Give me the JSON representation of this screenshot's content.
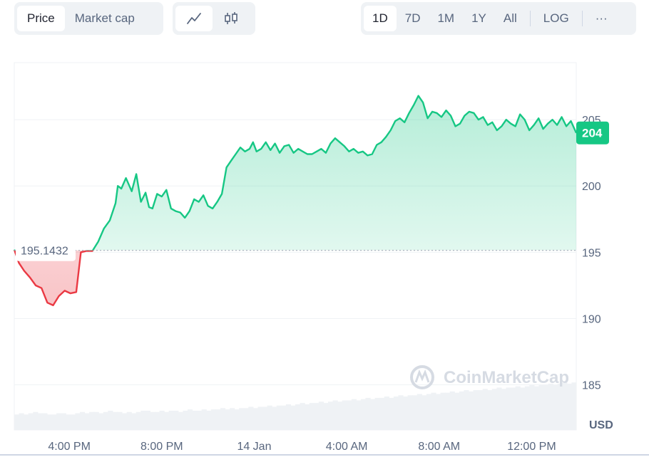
{
  "toolbar": {
    "metric_tabs": [
      {
        "label": "Price",
        "active": true
      },
      {
        "label": "Market cap",
        "active": false
      }
    ],
    "chart_type_icons": [
      "line-chart-icon",
      "candlestick-icon"
    ],
    "range_tabs": [
      {
        "label": "1D",
        "active": true
      },
      {
        "label": "7D",
        "active": false
      },
      {
        "label": "1M",
        "active": false
      },
      {
        "label": "1Y",
        "active": false
      },
      {
        "label": "All",
        "active": false
      }
    ],
    "log_label": "LOG",
    "more_label": "···"
  },
  "colors": {
    "up": "#16c784",
    "down": "#ea3943",
    "grid": "#eff2f5",
    "axis_text": "#58667e"
  },
  "chart_data": {
    "type": "area",
    "currency": "USD",
    "watermark": "CoinMarketCap",
    "x_ticks": [
      "4:00 PM",
      "8:00 PM",
      "14 Jan",
      "4:00 AM",
      "8:00 AM",
      "12:00 PM"
    ],
    "x_tick_hours": [
      16,
      20,
      24,
      28,
      32,
      36
    ],
    "x_range_hours": [
      13.62,
      37.93
    ],
    "y_ticks": [
      185,
      190,
      195,
      200,
      205
    ],
    "y_range": [
      181.6,
      200.0,
      209.3
    ],
    "y_view": [
      181.6,
      209.3
    ],
    "open_price": 195.1432,
    "open_price_label": "195.1432",
    "current_price": 204,
    "current_price_label": "204",
    "series": [
      {
        "x": [
          13.62,
          13.82,
          14.05,
          14.3,
          14.55,
          14.8,
          15.05,
          15.3,
          15.55,
          15.8,
          16.05,
          16.3,
          16.5,
          16.75,
          17.0,
          17.25,
          17.5,
          17.75,
          18.0,
          18.1,
          18.25,
          18.45,
          18.7,
          18.9,
          19.1,
          19.3,
          19.45,
          19.6,
          19.8,
          20.0,
          20.2,
          20.4,
          20.6,
          20.8,
          21.0,
          21.2,
          21.4,
          21.6,
          21.8,
          22.0,
          22.2,
          22.4,
          22.6,
          22.8,
          23.0,
          23.2,
          23.4,
          23.6,
          23.8,
          23.95,
          24.1,
          24.3,
          24.5,
          24.7,
          24.9,
          25.1,
          25.3,
          25.5,
          25.7,
          25.9,
          26.1,
          26.3,
          26.5,
          26.7,
          26.9,
          27.1,
          27.3,
          27.5,
          27.7,
          27.9,
          28.1,
          28.3,
          28.5,
          28.7,
          28.9,
          29.1,
          29.3,
          29.5,
          29.7,
          29.9,
          30.1,
          30.3,
          30.5,
          30.7,
          30.9,
          31.1,
          31.3,
          31.5,
          31.7,
          31.9,
          32.1,
          32.3,
          32.5,
          32.7,
          32.9,
          33.1,
          33.3,
          33.5,
          33.7,
          33.9,
          34.1,
          34.3,
          34.5,
          34.7,
          34.9,
          35.1,
          35.3,
          35.5,
          35.7,
          35.9,
          36.1,
          36.3,
          36.5,
          36.7,
          36.9,
          37.1,
          37.3,
          37.5,
          37.7,
          37.93
        ],
        "y": [
          195.2,
          194.2,
          193.6,
          193.1,
          192.5,
          192.3,
          191.2,
          191.0,
          191.7,
          192.1,
          191.9,
          192.0,
          195.0,
          195.1,
          195.1,
          195.8,
          196.8,
          197.4,
          198.7,
          200.0,
          199.8,
          200.6,
          199.6,
          200.9,
          198.8,
          199.5,
          198.4,
          198.3,
          199.4,
          199.2,
          199.7,
          198.3,
          198.1,
          198.0,
          197.6,
          198.1,
          199.0,
          198.8,
          199.3,
          198.5,
          198.3,
          198.8,
          199.4,
          201.4,
          201.9,
          202.4,
          202.9,
          202.6,
          202.8,
          203.3,
          202.6,
          202.8,
          203.3,
          202.7,
          203.2,
          202.5,
          203.0,
          203.1,
          202.5,
          202.8,
          202.6,
          202.4,
          202.4,
          202.6,
          202.8,
          202.5,
          203.2,
          203.6,
          203.3,
          203.0,
          202.6,
          202.8,
          202.5,
          202.6,
          202.3,
          202.4,
          203.1,
          203.3,
          203.7,
          204.2,
          204.9,
          205.1,
          204.8,
          205.5,
          206.1,
          206.8,
          206.3,
          205.1,
          205.6,
          205.5,
          205.2,
          205.7,
          205.3,
          204.5,
          204.7,
          205.3,
          205.6,
          205.5,
          205.0,
          205.2,
          204.6,
          204.8,
          204.2,
          204.5,
          205.0,
          204.7,
          204.5,
          205.4,
          205.0,
          204.2,
          204.6,
          205.1,
          204.3,
          204.7,
          205.0,
          204.6,
          205.2,
          204.5,
          204.9,
          204.0
        ],
        "volume": [
          0.12,
          0.13,
          0.12,
          0.13,
          0.14,
          0.13,
          0.13,
          0.12,
          0.12,
          0.13,
          0.13,
          0.12,
          0.12,
          0.13,
          0.14,
          0.13,
          0.14,
          0.14,
          0.13,
          0.14,
          0.15,
          0.14,
          0.14,
          0.13,
          0.14,
          0.13,
          0.14,
          0.15,
          0.15,
          0.14,
          0.14,
          0.15,
          0.14,
          0.15,
          0.15,
          0.14,
          0.15,
          0.16,
          0.15,
          0.15,
          0.16,
          0.15,
          0.16,
          0.16,
          0.17,
          0.16,
          0.17,
          0.16,
          0.17,
          0.17,
          0.18,
          0.17,
          0.18,
          0.18,
          0.19,
          0.18,
          0.19,
          0.19,
          0.2,
          0.19,
          0.2,
          0.21,
          0.2,
          0.21,
          0.21,
          0.22,
          0.21,
          0.22,
          0.23,
          0.22,
          0.23,
          0.23,
          0.24,
          0.23,
          0.24,
          0.25,
          0.24,
          0.25,
          0.25,
          0.26,
          0.25,
          0.26,
          0.27,
          0.26,
          0.27,
          0.27,
          0.28,
          0.27,
          0.28,
          0.29,
          0.28,
          0.29,
          0.29,
          0.3,
          0.29,
          0.3,
          0.31,
          0.3,
          0.31,
          0.31,
          0.32,
          0.31,
          0.32,
          0.33,
          0.32,
          0.33,
          0.33,
          0.34,
          0.33,
          0.34,
          0.35,
          0.34,
          0.35,
          0.35,
          0.36,
          0.35,
          0.36,
          0.37,
          0.36,
          0.37
        ]
      }
    ],
    "grid": true
  }
}
